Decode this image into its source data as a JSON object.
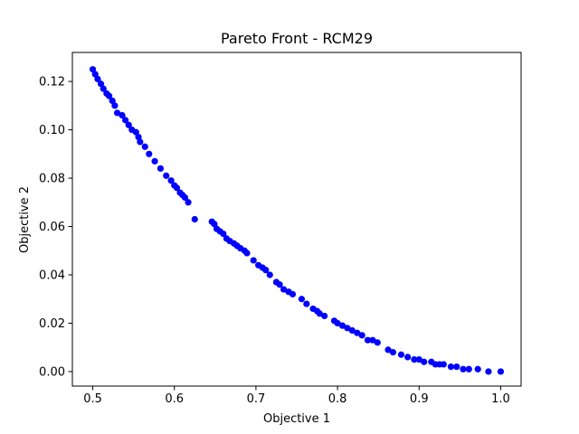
{
  "chart_data": {
    "type": "scatter",
    "title": "Pareto Front - RCM29",
    "xlabel": "Objective 1",
    "ylabel": "Objective 2",
    "xlim": [
      0.475,
      1.025
    ],
    "ylim": [
      -0.006,
      0.132
    ],
    "x_ticks": [
      0.5,
      0.6,
      0.7,
      0.8,
      0.9,
      1.0
    ],
    "x_tick_labels": [
      "0.5",
      "0.6",
      "0.7",
      "0.8",
      "0.9",
      "1.0"
    ],
    "y_ticks": [
      0.0,
      0.02,
      0.04,
      0.06,
      0.08,
      0.1,
      0.12
    ],
    "y_tick_labels": [
      "0.00",
      "0.02",
      "0.04",
      "0.06",
      "0.08",
      "0.10",
      "0.12"
    ],
    "grid": false,
    "marker_color": "#0000ff",
    "series": [
      {
        "x": [
          0.5,
          0.503,
          0.506,
          0.51,
          0.513,
          0.517,
          0.52,
          0.524,
          0.527,
          0.53,
          0.536,
          0.54,
          0.544,
          0.548,
          0.553,
          0.556,
          0.558,
          0.564,
          0.569,
          0.576,
          0.583,
          0.59,
          0.596,
          0.6,
          0.603,
          0.607,
          0.61,
          0.613,
          0.617,
          0.625,
          0.646,
          0.649,
          0.652,
          0.656,
          0.66,
          0.664,
          0.668,
          0.673,
          0.677,
          0.681,
          0.686,
          0.689,
          0.697,
          0.703,
          0.708,
          0.712,
          0.717,
          0.725,
          0.729,
          0.734,
          0.74,
          0.745,
          0.756,
          0.762,
          0.77,
          0.775,
          0.778,
          0.784,
          0.796,
          0.8,
          0.806,
          0.812,
          0.818,
          0.824,
          0.83,
          0.837,
          0.843,
          0.849,
          0.862,
          0.868,
          0.878,
          0.886,
          0.894,
          0.9,
          0.906,
          0.915,
          0.92,
          0.925,
          0.93,
          0.939,
          0.946,
          0.954,
          0.961,
          0.972,
          0.985,
          1.0
        ],
        "y": [
          0.125,
          0.123,
          0.121,
          0.119,
          0.117,
          0.115,
          0.114,
          0.112,
          0.11,
          0.107,
          0.106,
          0.104,
          0.102,
          0.1,
          0.099,
          0.097,
          0.095,
          0.093,
          0.09,
          0.087,
          0.084,
          0.081,
          0.079,
          0.077,
          0.076,
          0.074,
          0.073,
          0.072,
          0.07,
          0.063,
          0.062,
          0.061,
          0.059,
          0.058,
          0.057,
          0.055,
          0.054,
          0.053,
          0.052,
          0.051,
          0.05,
          0.049,
          0.046,
          0.044,
          0.043,
          0.042,
          0.04,
          0.037,
          0.036,
          0.034,
          0.033,
          0.032,
          0.03,
          0.028,
          0.026,
          0.025,
          0.024,
          0.023,
          0.021,
          0.02,
          0.019,
          0.018,
          0.017,
          0.016,
          0.015,
          0.013,
          0.013,
          0.012,
          0.009,
          0.008,
          0.007,
          0.006,
          0.005,
          0.005,
          0.004,
          0.004,
          0.003,
          0.003,
          0.003,
          0.002,
          0.002,
          0.001,
          0.001,
          0.001,
          0.0,
          0.0
        ]
      }
    ]
  }
}
